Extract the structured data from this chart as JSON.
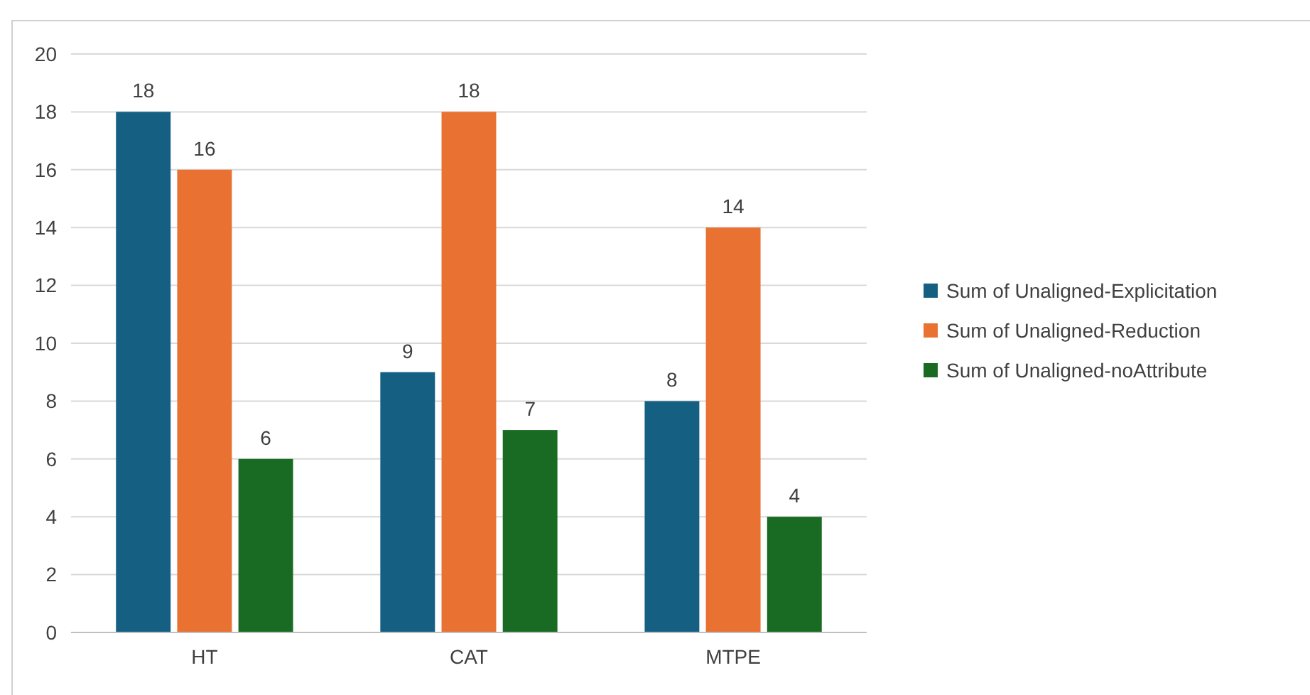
{
  "chart_data": {
    "type": "bar",
    "categories": [
      "HT",
      "CAT",
      "MTPE"
    ],
    "series": [
      {
        "name": "Sum of Unaligned-Explicitation",
        "color": "#156082",
        "values": [
          18,
          9,
          8
        ]
      },
      {
        "name": "Sum of Unaligned-Reduction",
        "color": "#e97132",
        "values": [
          16,
          18,
          14
        ]
      },
      {
        "name": "Sum of Unaligned-noAttribute",
        "color": "#196b24",
        "values": [
          6,
          7,
          4
        ]
      }
    ],
    "ylim": [
      0,
      20
    ],
    "yticks": [
      0,
      2,
      4,
      6,
      8,
      10,
      12,
      14,
      16,
      18,
      20
    ],
    "grid": "y",
    "legend": "right",
    "data_labels": true
  }
}
